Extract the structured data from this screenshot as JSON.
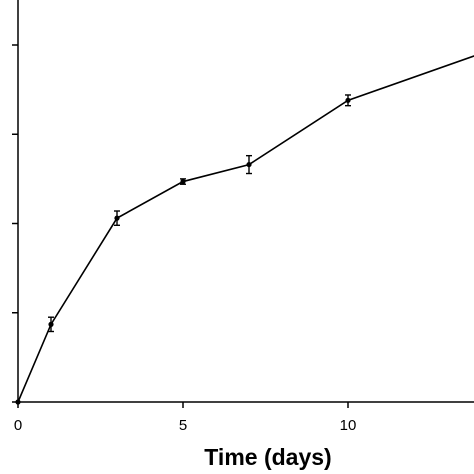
{
  "chart_data": {
    "type": "line",
    "title": "",
    "xlabel": "Time (days)",
    "ylabel": "",
    "xlim": [
      0,
      14
    ],
    "ylim": [
      0,
      4
    ],
    "x_ticks": [
      0,
      5,
      10
    ],
    "y_ticks": [
      0,
      1,
      2,
      3,
      4
    ],
    "grid": false,
    "legend": "none",
    "series": [
      {
        "x": [
          0,
          1,
          3,
          5,
          7,
          10,
          14
        ],
        "y": [
          0,
          0.87,
          2.06,
          2.47,
          2.66,
          3.38,
          3.9
        ],
        "error": [
          0,
          0.08,
          0.08,
          0.03,
          0.1,
          0.06,
          0
        ],
        "color": "#000000"
      }
    ]
  }
}
